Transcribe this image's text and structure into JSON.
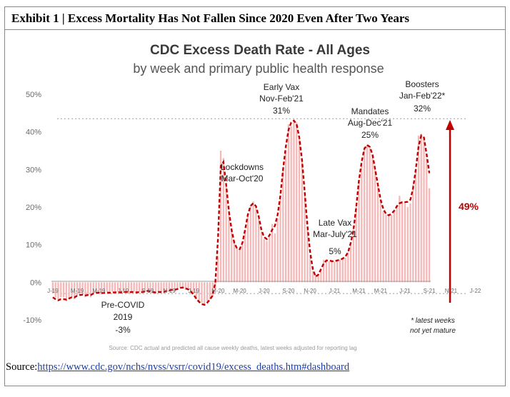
{
  "exhibit": {
    "title": "Exhibit 1 | Excess Mortality Has Not Fallen Since 2020 Even After Two Years"
  },
  "source": {
    "prefix": "Source:",
    "url": "https://www.cdc.gov/nchs/nvss/vsrr/covid19/excess_deaths.htm#dashboard"
  },
  "colors": {
    "bars": "#f4b8b8",
    "trend": "#c00000",
    "arrow": "#c00000",
    "axis_text": "#6b6b6b",
    "title_text": "#333333"
  },
  "chart_data": {
    "type": "bar",
    "title": "CDC Excess Death Rate - All Ages",
    "subtitle": "by week and primary public health response",
    "source_note": "Source: CDC actual and predicted all cause weekly deaths, latest weeks adjusted for reporting lag",
    "ylim": [
      -10,
      50
    ],
    "yticks": [
      -10,
      0,
      10,
      20,
      30,
      40,
      50
    ],
    "ytick_labels": [
      "-10%",
      "0%",
      "10%",
      "20%",
      "30%",
      "40%",
      "50%"
    ],
    "grid": false,
    "x_tick_labels": [
      {
        "label": "J-19",
        "week": 0
      },
      {
        "label": "M-19",
        "week": 9
      },
      {
        "label": "M-19",
        "week": 17
      },
      {
        "label": "J-19",
        "week": 26
      },
      {
        "label": "S-19",
        "week": 35
      },
      {
        "label": "N-19",
        "week": 43
      },
      {
        "label": "J-19",
        "week": 52
      },
      {
        "label": "M-20",
        "week": 61
      },
      {
        "label": "M-20",
        "week": 69
      },
      {
        "label": "J-20",
        "week": 78
      },
      {
        "label": "S-20",
        "week": 87
      },
      {
        "label": "N-20",
        "week": 95
      },
      {
        "label": "J-21",
        "week": 104
      },
      {
        "label": "M-21",
        "week": 113
      },
      {
        "label": "M-21",
        "week": 121
      },
      {
        "label": "J-21",
        "week": 130
      },
      {
        "label": "S-21",
        "week": 139
      },
      {
        "label": "N-21",
        "week": 147
      },
      {
        "label": "J-22",
        "week": 156
      }
    ],
    "weekly_excess_pct": [
      -3,
      -4,
      -4.5,
      -4,
      -4,
      -5,
      -4.5,
      -4,
      -4.5,
      -3.5,
      -3,
      -3,
      -4,
      -3.5,
      -4,
      -3,
      -2.5,
      -3,
      -3,
      -3,
      -2.5,
      -3,
      -2.5,
      -3,
      -2.5,
      -3,
      -2.5,
      -2.5,
      -3,
      -2.5,
      -2.5,
      -3,
      -2.5,
      -3,
      -2.5,
      -2,
      -2.5,
      -3,
      -3,
      -2.5,
      -2.5,
      -3,
      -2,
      -2.5,
      -2,
      -2.5,
      -2,
      -1.5,
      -1.5,
      -2,
      -2,
      -2.5,
      -3,
      -4.5,
      -5,
      -5.5,
      -6,
      -5,
      -4.5,
      -4,
      -2,
      7,
      35,
      33,
      26,
      19,
      14,
      10.5,
      9,
      8.5,
      10,
      14,
      18,
      20.5,
      21.5,
      20,
      17,
      13.5,
      11.5,
      11,
      12,
      15.5,
      13,
      17,
      23,
      30,
      35,
      42,
      41.5,
      43,
      42.5,
      38,
      33,
      24,
      14,
      7,
      3,
      2,
      2,
      3.5,
      6,
      6,
      5.5,
      5.5,
      5.5,
      6,
      6,
      6.5,
      6.5,
      8,
      10,
      14,
      20,
      27,
      31,
      36,
      36.5,
      36,
      34,
      30,
      26,
      22,
      19,
      18,
      17.5,
      18,
      19,
      20.5,
      23,
      21.5,
      21,
      20,
      21,
      26,
      30,
      39,
      39.5,
      38,
      33,
      25
    ],
    "trend_pct": [
      -4,
      -4.5,
      -4.8,
      -4.5,
      -4.5,
      -4.6,
      -4.3,
      -4,
      -4,
      -3.6,
      -3.4,
      -3.3,
      -3.5,
      -3.4,
      -3.4,
      -3,
      -2.8,
      -2.8,
      -2.9,
      -2.8,
      -2.7,
      -2.8,
      -2.7,
      -2.7,
      -2.6,
      -2.7,
      -2.6,
      -2.6,
      -2.7,
      -2.6,
      -2.6,
      -2.7,
      -2.6,
      -2.6,
      -2.5,
      -2.3,
      -2.4,
      -2.6,
      -2.7,
      -2.6,
      -2.6,
      -2.6,
      -2.3,
      -2.2,
      -2,
      -2,
      -1.8,
      -1.5,
      -1.4,
      -1.6,
      -1.9,
      -2.5,
      -3.3,
      -4.4,
      -5.2,
      -5.8,
      -6,
      -5.4,
      -4.6,
      -3.5,
      0,
      12,
      31,
      32,
      26,
      19,
      14,
      10.5,
      9,
      8.8,
      10.5,
      14,
      18,
      20.3,
      21,
      20.2,
      17.5,
      14,
      12,
      11.5,
      12.5,
      14,
      15,
      18,
      23,
      30,
      36,
      40.5,
      42.5,
      43,
      42,
      38.5,
      32.5,
      24,
      15,
      8,
      3.5,
      1.5,
      2,
      3.5,
      5,
      5.8,
      5.8,
      5.6,
      5.6,
      5.8,
      6,
      6.3,
      6.8,
      8,
      10.5,
      14,
      20,
      27,
      32,
      35.5,
      36.5,
      36,
      34,
      30,
      26,
      22,
      19.5,
      18.2,
      17.8,
      18.2,
      19,
      20.2,
      21,
      21.3,
      21.3,
      21.4,
      22,
      25,
      30,
      36,
      39,
      38.5,
      34,
      29
    ],
    "reference_lines": [
      {
        "label": "pre-covid-baseline",
        "value": -3
      },
      {
        "label": "booster-peak",
        "value": 43.5
      }
    ],
    "annotations": [
      {
        "lines": [
          "Lockdowns",
          "Mar-Oct'20"
        ]
      },
      {
        "lines": [
          "Early Vax",
          "Nov-Feb'21",
          "31%"
        ]
      },
      {
        "lines": [
          "Mandates",
          "Aug-Dec'21",
          "25%"
        ]
      },
      {
        "lines": [
          "Boosters",
          "Jan-Feb'22*",
          "32%"
        ]
      },
      {
        "lines": [
          "Late Vax",
          "Mar-July'21",
          "5%"
        ]
      },
      {
        "lines": [
          "Pre-COVID",
          "2019",
          "-3%"
        ]
      }
    ],
    "arrow_label": "49%",
    "footnote": [
      "* latest weeks",
      "not yet mature"
    ]
  }
}
